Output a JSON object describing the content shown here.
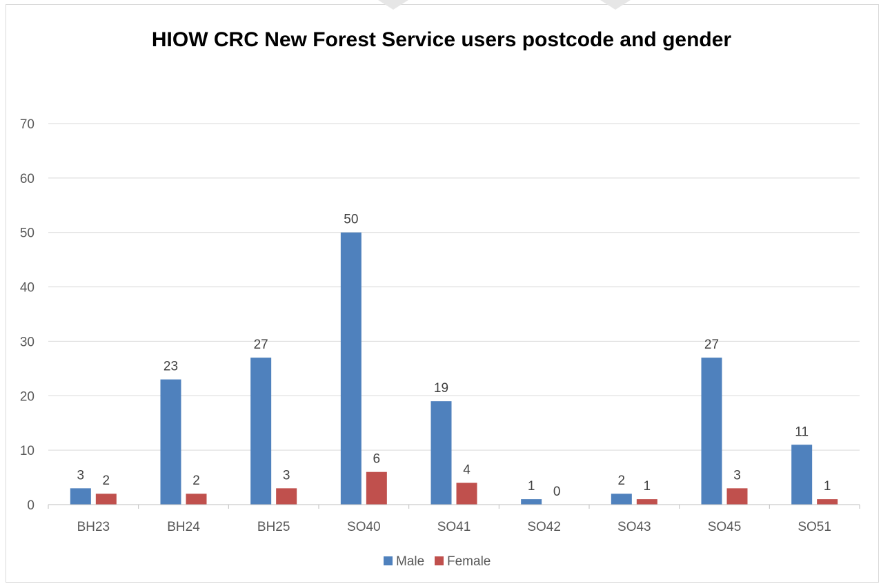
{
  "chart_data": {
    "type": "bar",
    "title": "HIOW CRC New Forest Service users postcode and gender",
    "xlabel": "",
    "ylabel": "",
    "categories": [
      "BH23",
      "BH24",
      "BH25",
      "SO40",
      "SO41",
      "SO42",
      "SO43",
      "SO45",
      "SO51"
    ],
    "series": [
      {
        "name": "Male",
        "color": "#4f81bd",
        "values": [
          3,
          23,
          27,
          50,
          19,
          1,
          2,
          27,
          11
        ]
      },
      {
        "name": "Female",
        "color": "#c0504d",
        "values": [
          2,
          2,
          3,
          6,
          4,
          0,
          1,
          3,
          1
        ]
      }
    ],
    "ylim": [
      0,
      70
    ],
    "yticks": [
      0,
      10,
      20,
      30,
      40,
      50,
      60,
      70
    ],
    "grid": true,
    "legend": "bottom"
  }
}
